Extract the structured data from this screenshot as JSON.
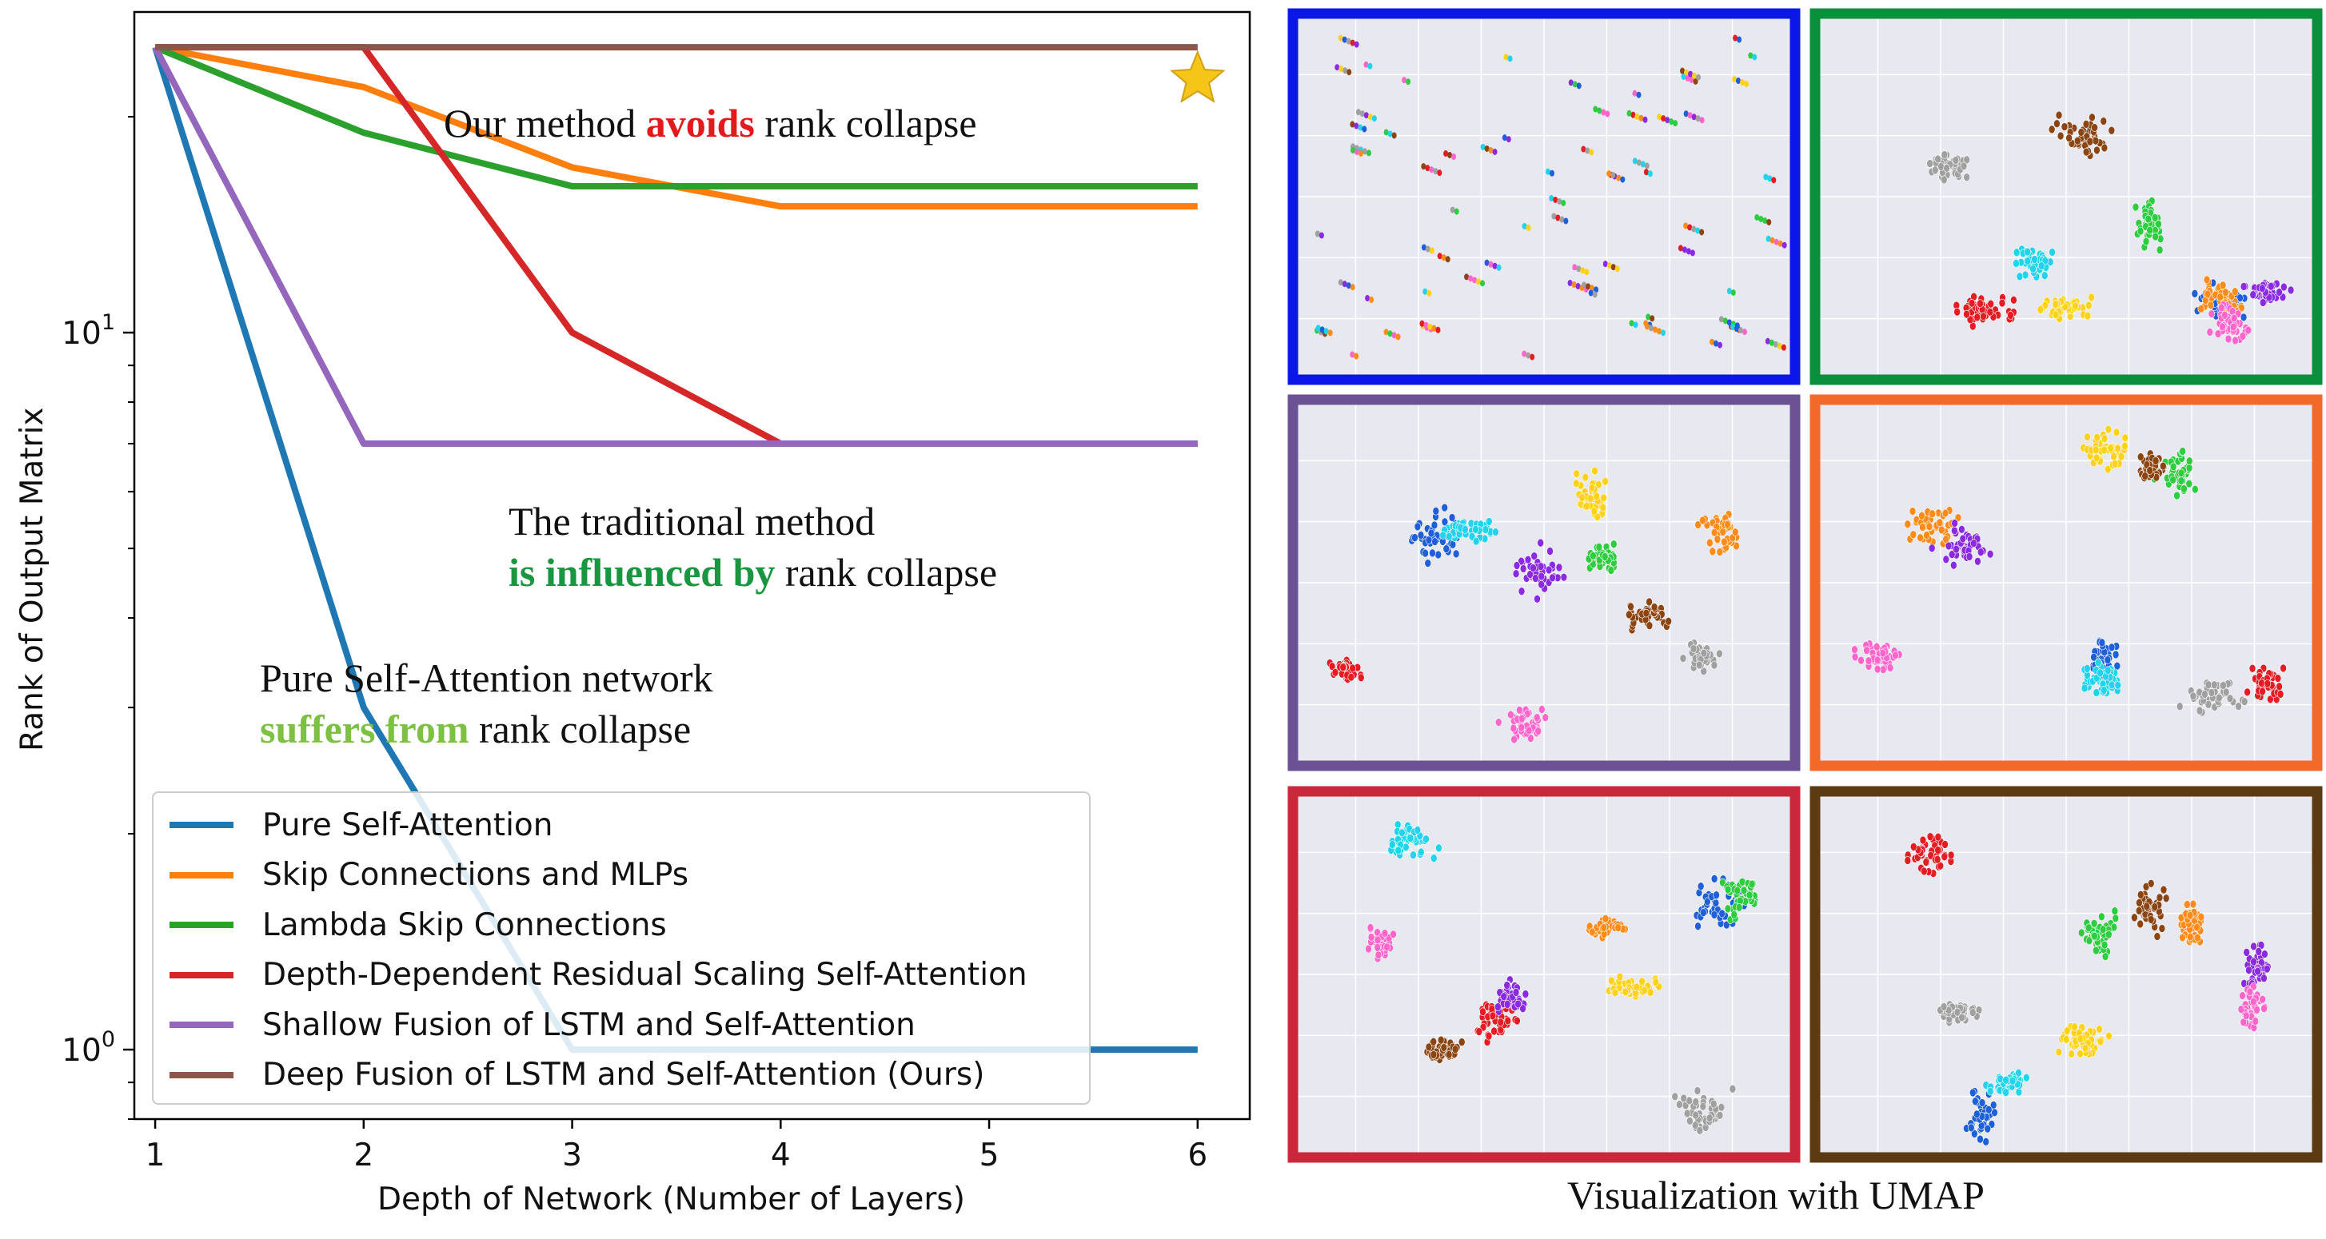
{
  "chart_data": {
    "type": "line",
    "xlabel": "Depth of Network (Number of Layers)",
    "ylabel": "Rank of Output Matrix",
    "yscale": "log",
    "xlim": [
      0.9,
      6.25
    ],
    "ylim": [
      0.8,
      28
    ],
    "x_ticks": [
      1,
      2,
      3,
      4,
      5,
      6
    ],
    "y_ticks": [
      {
        "value": 1,
        "base": "10",
        "exp": "0"
      },
      {
        "value": 10,
        "base": "10",
        "exp": "1"
      }
    ],
    "grid": false,
    "legend_position": "lower-left",
    "series": [
      {
        "name": "Pure Self-Attention",
        "color": "#1f77b4",
        "x": [
          1,
          2,
          3,
          4,
          5,
          6
        ],
        "values": [
          25,
          3,
          1,
          1,
          1,
          1
        ]
      },
      {
        "name": "Skip Connections and MLPs",
        "color": "#ff7f0e",
        "x": [
          1,
          2,
          3,
          4,
          5,
          6
        ],
        "values": [
          25,
          22,
          17,
          15,
          15,
          15
        ]
      },
      {
        "name": "Lambda Skip Connections",
        "color": "#2ca02c",
        "x": [
          1,
          2,
          3,
          4,
          5,
          6
        ],
        "values": [
          25,
          19,
          16,
          16,
          16,
          16
        ]
      },
      {
        "name": "Depth-Dependent Residual Scaling Self-Attention",
        "color": "#d62728",
        "x": [
          1,
          2,
          3,
          4,
          5,
          6
        ],
        "values": [
          25,
          25,
          10,
          7,
          7,
          7
        ]
      },
      {
        "name": "Shallow Fusion of LSTM and Self-Attention",
        "color": "#9467bd",
        "x": [
          1,
          2,
          3,
          4,
          5,
          6
        ],
        "values": [
          25,
          7,
          7,
          7,
          7,
          7
        ]
      },
      {
        "name": "Deep Fusion of LSTM and Self-Attention (Ours)",
        "color": "#8c564b",
        "x": [
          1,
          2,
          3,
          4,
          5,
          6
        ],
        "values": [
          25,
          25,
          25,
          25,
          25,
          25
        ]
      }
    ],
    "annotations": {
      "ours": {
        "pre": "Our method ",
        "highlight": "avoids",
        "post": " rank collapse",
        "color": "#e31a1c"
      },
      "traditional": {
        "line1": "The traditional method",
        "highlight": "is influenced by",
        "post": " rank collapse",
        "color": "#1a9641"
      },
      "pure": {
        "line1": "Pure Self-Attention network",
        "highlight": "suffers from",
        "post": " rank collapse",
        "color": "#7dc142"
      }
    },
    "star_marker": {
      "x": 6,
      "y": 25,
      "color": "#f5c518"
    }
  },
  "umap": {
    "caption": "Visualization with UMAP",
    "panel_border_colors": [
      "#0a17e8",
      "#0a8f3c",
      "#6a5294",
      "#f2692a",
      "#c8283a",
      "#5c3a12"
    ],
    "panel_names": [
      "umap-panel-blue",
      "umap-panel-green",
      "umap-panel-purple",
      "umap-panel-orange",
      "umap-panel-red",
      "umap-panel-brown"
    ],
    "background": "#e8e8f0",
    "cluster_colors": [
      "#1f5fd9",
      "#ff8c1a",
      "#2ecc40",
      "#e51c23",
      "#8a2be2",
      "#8b4513",
      "#ff66cc",
      "#a0a0a0",
      "#ffd21a",
      "#22d3ee"
    ]
  }
}
